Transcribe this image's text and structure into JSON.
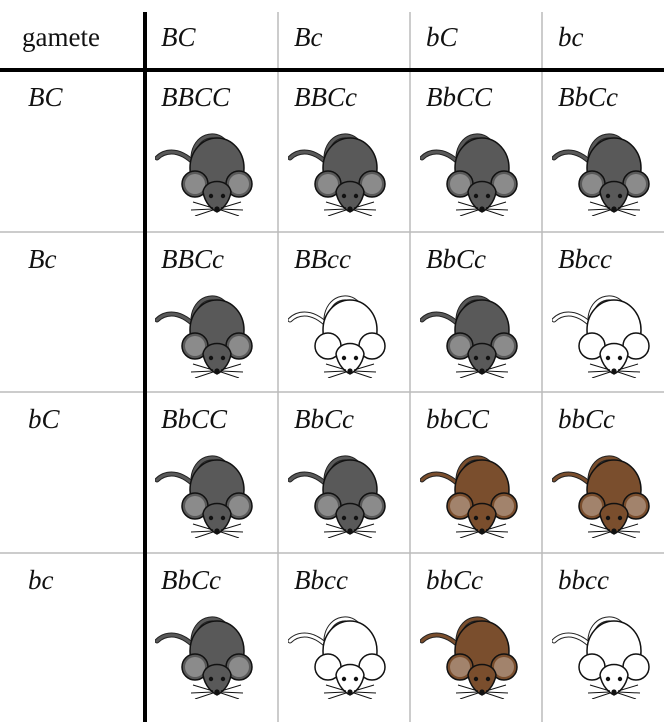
{
  "header": [
    "gamete",
    "BC",
    "Bc",
    "bC",
    "bc"
  ],
  "rows": [
    {
      "label": "BC",
      "cells": [
        {
          "genotype": "BBCC",
          "coat": "#595959"
        },
        {
          "genotype": "BBCc",
          "coat": "#595959"
        },
        {
          "genotype": "BbCC",
          "coat": "#595959"
        },
        {
          "genotype": "BbCc",
          "coat": "#595959"
        }
      ]
    },
    {
      "label": "Bc",
      "cells": [
        {
          "genotype": "BBCc",
          "coat": "#595959"
        },
        {
          "genotype": "BBcc",
          "coat": "#ffffff"
        },
        {
          "genotype": "BbCc",
          "coat": "#595959"
        },
        {
          "genotype": "Bbcc",
          "coat": "#ffffff"
        }
      ]
    },
    {
      "label": "bC",
      "cells": [
        {
          "genotype": "BbCC",
          "coat": "#595959"
        },
        {
          "genotype": "BbCc",
          "coat": "#595959"
        },
        {
          "genotype": "bbCC",
          "coat": "#7a4e2d"
        },
        {
          "genotype": "bbCc",
          "coat": "#7a4e2d"
        }
      ]
    },
    {
      "label": "bc",
      "cells": [
        {
          "genotype": "BbCc",
          "coat": "#595959"
        },
        {
          "genotype": "Bbcc",
          "coat": "#ffffff"
        },
        {
          "genotype": "bbCc",
          "coat": "#7a4e2d"
        },
        {
          "genotype": "bbcc",
          "coat": "#ffffff"
        }
      ]
    }
  ]
}
